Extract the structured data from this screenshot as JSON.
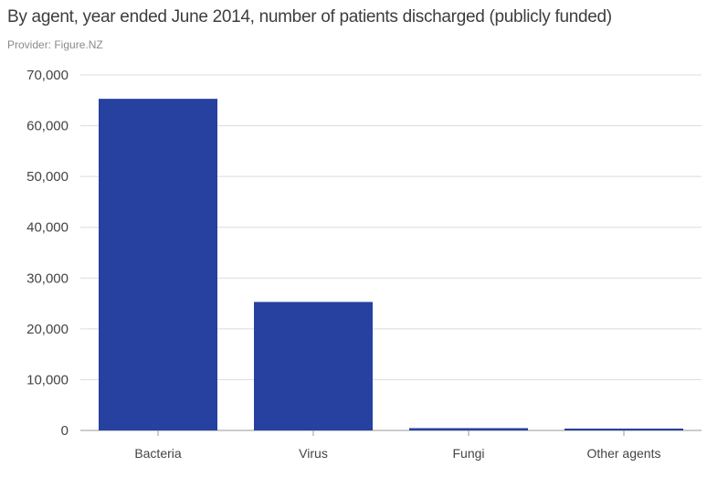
{
  "header": {
    "title": "By agent, year ended June 2014, number of patients discharged (publicly funded)",
    "provider": "Provider: Figure.NZ"
  },
  "colors": {
    "bar": "#2741a0",
    "grid": "#dcdcdc",
    "axis": "#9a9a9a"
  },
  "chart_data": {
    "type": "bar",
    "title": "By agent, year ended June 2014, number of patients discharged (publicly funded)",
    "categories": [
      "Bacteria",
      "Virus",
      "Fungi",
      "Other agents"
    ],
    "values": [
      65300,
      25300,
      450,
      300
    ],
    "ylim": [
      0,
      70000
    ],
    "yticks": [
      0,
      10000,
      20000,
      30000,
      40000,
      50000,
      60000,
      70000
    ],
    "ytick_labels": [
      "0",
      "10,000",
      "20,000",
      "30,000",
      "40,000",
      "50,000",
      "60,000",
      "70,000"
    ],
    "xlabel": "",
    "ylabel": "",
    "grid": true
  }
}
